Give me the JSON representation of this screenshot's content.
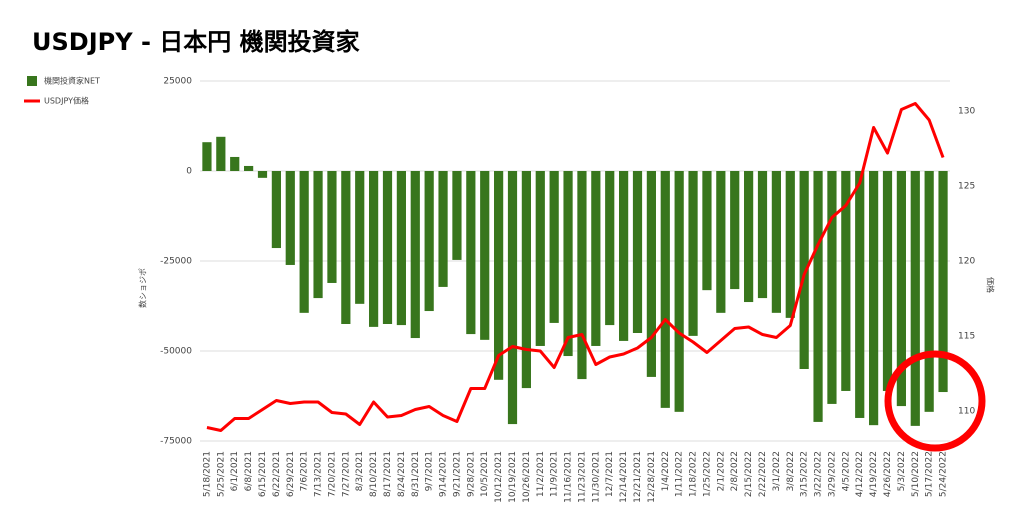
{
  "chart_data": {
    "type": "bar-line",
    "title": "USDJPY - 日本円 機関投資家",
    "y_label": "数ショジポ",
    "y2_label": "価格",
    "categories": [
      "5/18/2021",
      "5/25/2021",
      "6/1/2021",
      "6/8/2021",
      "6/15/2021",
      "6/22/2021",
      "6/29/2021",
      "7/6/2021",
      "7/13/2021",
      "7/20/2021",
      "7/27/2021",
      "8/3/2021",
      "8/10/2021",
      "8/17/2021",
      "8/24/2021",
      "8/31/2021",
      "9/7/2021",
      "9/14/2021",
      "9/21/2021",
      "9/28/2021",
      "10/5/2021",
      "10/12/2021",
      "10/19/2021",
      "10/26/2021",
      "11/2/2021",
      "11/9/2021",
      "11/16/2021",
      "11/23/2021",
      "11/30/2021",
      "12/7/2021",
      "12/14/2021",
      "12/21/2021",
      "12/28/2021",
      "1/4/2022",
      "1/11/2022",
      "1/18/2022",
      "1/25/2022",
      "2/1/2022",
      "2/8/2022",
      "2/15/2022",
      "2/22/2022",
      "3/1/2022",
      "3/8/2022",
      "3/15/2022",
      "3/22/2022",
      "3/29/2022",
      "4/5/2022",
      "4/12/2022",
      "4/19/2022",
      "4/26/2022",
      "5/3/2022",
      "5/10/2022",
      "5/17/2022",
      "5/24/2022"
    ],
    "series": [
      {
        "name": "機関投資家NET",
        "color": "#38761d",
        "kind": "bar",
        "values": [
          8000,
          9500,
          3900,
          1400,
          -1900,
          -21400,
          -26100,
          -39400,
          -35300,
          -31100,
          -42500,
          -36900,
          -43300,
          -42500,
          -42800,
          -46400,
          -38900,
          -32200,
          -24700,
          -45300,
          -46900,
          -58000,
          -70300,
          -60300,
          -48600,
          -42200,
          -51400,
          -57800,
          -48600,
          -42800,
          -47200,
          -45000,
          -57200,
          -65800,
          -66900,
          -45800,
          -33100,
          -39400,
          -32800,
          -36400,
          -35300,
          -39400,
          -40800,
          -55000,
          -69700,
          -64700,
          -61100,
          -68600,
          -70600,
          -61100,
          -65300,
          -70800,
          -66900,
          -61400
        ]
      },
      {
        "name": "USDJPY価格",
        "color": "#ff0000",
        "kind": "line",
        "axis": "y2",
        "values": [
          108.9,
          108.7,
          109.5,
          109.5,
          110.1,
          110.7,
          110.5,
          110.6,
          110.6,
          109.9,
          109.8,
          109.1,
          110.6,
          109.6,
          109.7,
          110.1,
          110.3,
          109.7,
          109.3,
          111.5,
          111.5,
          113.7,
          114.3,
          114.1,
          114.0,
          112.9,
          114.9,
          115.1,
          113.1,
          113.6,
          113.8,
          114.2,
          114.9,
          116.1,
          115.2,
          114.6,
          113.9,
          114.7,
          115.5,
          115.6,
          115.1,
          114.9,
          115.7,
          119.1,
          121.1,
          122.9,
          123.7,
          125.2,
          128.9,
          127.2,
          130.1,
          130.5,
          129.4,
          126.9
        ]
      }
    ],
    "ylim": [
      -75000,
      25000
    ],
    "yticks": [
      -75000,
      -50000,
      -25000,
      0,
      25000
    ],
    "y2lim": [
      108,
      132
    ],
    "y2ticks": [
      110,
      115,
      120,
      125,
      130
    ],
    "grid": true,
    "legend": "top-left"
  }
}
